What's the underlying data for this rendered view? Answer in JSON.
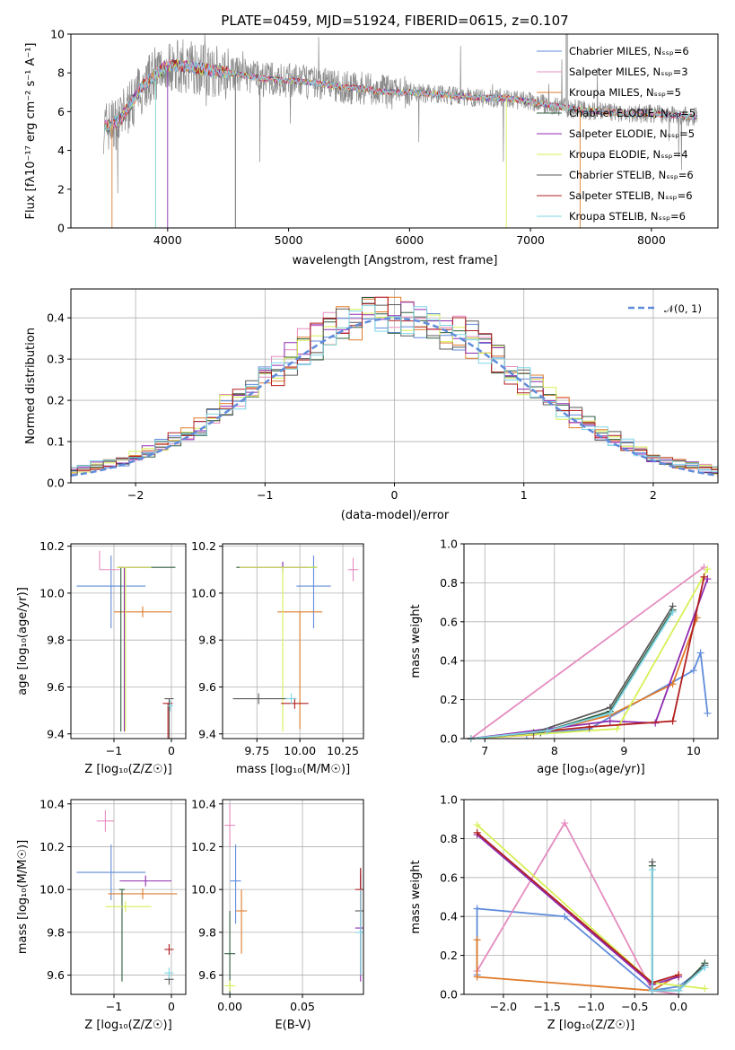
{
  "colors": [
    "#5f8cdb",
    "#e58cc0",
    "#e07c2c",
    "#2e5e3e",
    "#8f2bb0",
    "#d7f056",
    "#5a5a5a",
    "#b21f1f",
    "#7fd6e6"
  ],
  "chart_data": [
    {
      "id": "spectrum",
      "type": "line",
      "title": "PLATE=0459, MJD=51924, FIBERID=0615, z=0.107",
      "xlabel": "wavelength [Angstrom, rest frame]",
      "ylabel": "Flux [fλ10⁻¹⁷ erg cm⁻² s⁻¹ A⁻¹]",
      "xlim": [
        3200,
        8550
      ],
      "ylim": [
        0,
        10
      ],
      "xticks": [
        "4000",
        "5000",
        "6000",
        "7000",
        "8000"
      ],
      "yticks": [
        "0",
        "2",
        "4",
        "6",
        "8",
        "10"
      ],
      "legend_position": "upper-right",
      "continuum_x": [
        3480,
        3600,
        3800,
        4000,
        4200,
        4400,
        4600,
        4800,
        5000,
        5200,
        5400,
        5600,
        5800,
        6000,
        6200,
        6400,
        6600,
        6800,
        7000,
        7200,
        7400,
        7600,
        7800,
        8000,
        8200,
        8400
      ],
      "continuum_y": [
        5.2,
        5.5,
        7.4,
        8.4,
        8.3,
        8.1,
        7.9,
        7.7,
        7.6,
        7.5,
        7.3,
        7.2,
        7.0,
        7.0,
        6.9,
        6.8,
        6.7,
        6.7,
        6.5,
        6.3,
        6.1,
        6.0,
        5.9,
        5.9,
        5.8,
        5.7
      ],
      "series": [
        {
          "name": "Chabrier MILES, Nₛₛₚ=6"
        },
        {
          "name": "Salpeter MILES, Nₛₛₚ=3"
        },
        {
          "name": "Kroupa MILES, Nₛₛₚ=5"
        },
        {
          "name": "Chabrier ELODIE, Nₛₛₚ=5"
        },
        {
          "name": "Salpeter ELODIE, Nₛₛₚ=5"
        },
        {
          "name": "Kroupa ELODIE, Nₛₛₚ=4"
        },
        {
          "name": "Chabrier STELIB, Nₛₛₚ=6"
        },
        {
          "name": "Salpeter STELIB, Nₛₛₚ=6"
        },
        {
          "name": "Kroupa STELIB, Nₛₛₚ=6"
        }
      ]
    },
    {
      "id": "residuals",
      "type": "line",
      "xlabel": "(data-model)/error",
      "ylabel": "Normed distribution",
      "xlim": [
        -2.5,
        2.5
      ],
      "ylim": [
        0,
        0.47
      ],
      "xticks": [
        "−2",
        "−1",
        "0",
        "1",
        "2"
      ],
      "yticks": [
        "0.0",
        "0.1",
        "0.2",
        "0.3",
        "0.4"
      ],
      "grid": true,
      "legend": "𝒩(0, 1)",
      "legend_position": "upper-right",
      "reference_curve": "normal(0,1)",
      "bin_width": 0.1
    },
    {
      "id": "age-vs-Z",
      "type": "scatter",
      "xlabel": "Z [log₁₀(Z/Z☉)]",
      "ylabel": "age  [log₁₀(age/yr)]",
      "xlim": [
        -1.75,
        0.25
      ],
      "ylim": [
        9.38,
        10.21
      ],
      "xticks": [
        "−1",
        "0"
      ],
      "yticks": [
        "9.4",
        "9.6",
        "9.8",
        "10.0",
        "10.2"
      ],
      "grid": true,
      "points": [
        {
          "x": -1.05,
          "xerr": [
            0.6,
            0.6
          ],
          "y": 10.03,
          "yerr": [
            0.18,
            0.13
          ]
        },
        {
          "x": -1.25,
          "xerr": [
            0.0,
            0.35
          ],
          "y": 10.1,
          "yerr": [
            0.0,
            0.08
          ]
        },
        {
          "x": -0.5,
          "xerr": [
            0.5,
            0.5
          ],
          "y": 9.92,
          "yerr": [
            0.0,
            0.0
          ]
        },
        {
          "x": -0.88,
          "xerr": [
            0.05,
            0.95
          ],
          "y": 10.11,
          "yerr": [
            0.7,
            0.0
          ]
        },
        {
          "x": -0.82,
          "xerr": [
            0.1,
            0.45
          ],
          "y": 10.11,
          "yerr": [
            0.7,
            0.0
          ]
        },
        {
          "x": -0.8,
          "xerr": [
            0.15,
            0.45
          ],
          "y": 10.11,
          "yerr": [
            0.7,
            0.0
          ]
        },
        {
          "x": -0.04,
          "xerr": [
            0.08,
            0.08
          ],
          "y": 9.55,
          "yerr": [
            0.55,
            0.0
          ]
        },
        {
          "x": -0.06,
          "xerr": [
            0.09,
            0.08
          ],
          "y": 9.53,
          "yerr": [
            0.5,
            0.0
          ]
        },
        {
          "x": -0.02,
          "xerr": [
            0.05,
            0.05
          ],
          "y": 9.52,
          "yerr": [
            0.0,
            0.0
          ]
        }
      ]
    },
    {
      "id": "age-vs-mass",
      "type": "scatter",
      "xlabel": "mass [log₁₀(M/M☉)]",
      "xlim": [
        9.55,
        10.37
      ],
      "ylim": [
        9.38,
        10.21
      ],
      "xticks": [
        "9.75",
        "10.00",
        "10.25"
      ],
      "yticks": [
        "9.4",
        "9.6",
        "9.8",
        "10.0",
        "10.2"
      ],
      "grid": true,
      "points": [
        {
          "x": 10.08,
          "xerr": [
            0.1,
            0.1
          ],
          "y": 10.03,
          "yerr": [
            0.18,
            0.13
          ]
        },
        {
          "x": 10.31,
          "xerr": [
            0.03,
            0.03
          ],
          "y": 10.1,
          "yerr": [
            0.05,
            0.05
          ]
        },
        {
          "x": 10.0,
          "xerr": [
            0.13,
            0.13
          ],
          "y": 9.92,
          "yerr": [
            0.5,
            0.0
          ]
        },
        {
          "x": 9.9,
          "xerr": [
            0.27,
            0.2
          ],
          "y": 10.11,
          "yerr": [
            0.0,
            0.0
          ]
        },
        {
          "x": 9.9,
          "xerr": [
            0.25,
            0.15
          ],
          "y": 10.11,
          "yerr": [
            0.0,
            0.0
          ]
        },
        {
          "x": 9.9,
          "xerr": [
            0.25,
            0.2
          ],
          "y": 10.11,
          "yerr": [
            0.7,
            0.0
          ]
        },
        {
          "x": 9.76,
          "xerr": [
            0.15,
            0.16
          ],
          "y": 9.55,
          "yerr": [
            0.0,
            0.0
          ]
        },
        {
          "x": 9.97,
          "xerr": [
            0.08,
            0.08
          ],
          "y": 9.53,
          "yerr": [
            0.0,
            0.0
          ]
        },
        {
          "x": 9.95,
          "xerr": [
            0.0,
            0.0
          ],
          "y": 9.55,
          "yerr": [
            0.0,
            0.0
          ]
        }
      ]
    },
    {
      "id": "weight-vs-age",
      "type": "line",
      "xlabel": "age  [log₁₀(age/yr)]",
      "ylabel": "mass weight",
      "xlim": [
        6.7,
        10.35
      ],
      "ylim": [
        0,
        1
      ],
      "xticks": [
        "7",
        "8",
        "9",
        "10"
      ],
      "yticks": [
        "0.0",
        "0.2",
        "0.4",
        "0.6",
        "0.8",
        "1.0"
      ],
      "grid": true,
      "series": [
        {
          "x": [
            6.8,
            7.6,
            8.5,
            10.0,
            10.1,
            10.2
          ],
          "y": [
            0.0,
            0.02,
            0.05,
            0.35,
            0.44,
            0.13
          ]
        },
        {
          "x": [
            6.8,
            10.15
          ],
          "y": [
            0.0,
            0.88
          ]
        },
        {
          "x": [
            6.8,
            7.7,
            8.8,
            9.7,
            10.05
          ],
          "y": [
            0.0,
            0.02,
            0.12,
            0.28,
            0.62
          ]
        },
        {
          "x": [
            6.8,
            7.8,
            8.8,
            9.7
          ],
          "y": [
            0.0,
            0.03,
            0.14,
            0.66
          ]
        },
        {
          "x": [
            6.8,
            8.8,
            9.45,
            10.2
          ],
          "y": [
            0.0,
            0.09,
            0.08,
            0.82
          ]
        },
        {
          "x": [
            6.8,
            8.9,
            10.2
          ],
          "y": [
            0.0,
            0.05,
            0.87
          ]
        },
        {
          "x": [
            6.8,
            7.7,
            8.8,
            9.7
          ],
          "y": [
            0.0,
            0.03,
            0.16,
            0.68
          ]
        },
        {
          "x": [
            6.8,
            8.5,
            9.7,
            10.15
          ],
          "y": [
            0.0,
            0.06,
            0.09,
            0.83
          ]
        },
        {
          "x": [
            6.8,
            7.9,
            8.8,
            9.7
          ],
          "y": [
            0.0,
            0.04,
            0.13,
            0.65
          ]
        }
      ]
    },
    {
      "id": "mass-vs-Z",
      "type": "scatter",
      "xlabel": "Z [log₁₀(Z/Z☉)]",
      "ylabel": "mass [log₁₀(M/M☉)]",
      "xlim": [
        -1.75,
        0.25
      ],
      "ylim": [
        9.51,
        10.42
      ],
      "xticks": [
        "−1",
        "0"
      ],
      "yticks": [
        "9.6",
        "9.8",
        "10.0",
        "10.2",
        "10.4"
      ],
      "grid": true,
      "points": [
        {
          "x": -1.05,
          "xerr": [
            0.6,
            0.6
          ],
          "y": 10.08,
          "yerr": [
            0.13,
            0.13
          ]
        },
        {
          "x": -1.15,
          "xerr": [
            0.15,
            0.15
          ],
          "y": 10.32,
          "yerr": [
            0.05,
            0.05
          ]
        },
        {
          "x": -0.5,
          "xerr": [
            0.6,
            0.6
          ],
          "y": 9.98,
          "yerr": [
            0.0,
            0.0
          ]
        },
        {
          "x": -0.86,
          "xerr": [
            0.05,
            0.05
          ],
          "y": 10.0,
          "yerr": [
            0.43,
            0.0
          ]
        },
        {
          "x": -0.45,
          "xerr": [
            0.45,
            0.45
          ],
          "y": 10.04,
          "yerr": [
            0.0,
            0.0
          ]
        },
        {
          "x": -0.8,
          "xerr": [
            0.35,
            0.45
          ],
          "y": 9.92,
          "yerr": [
            0.0,
            0.0
          ]
        },
        {
          "x": -0.04,
          "xerr": [
            0.08,
            0.08
          ],
          "y": 9.58,
          "yerr": [
            0.0,
            0.0
          ]
        },
        {
          "x": -0.04,
          "xerr": [
            0.08,
            0.08
          ],
          "y": 9.72,
          "yerr": [
            0.0,
            0.0
          ]
        },
        {
          "x": -0.04,
          "xerr": [
            0.08,
            0.08
          ],
          "y": 9.61,
          "yerr": [
            0.0,
            0.0
          ]
        }
      ]
    },
    {
      "id": "mass-vs-EBV",
      "type": "scatter",
      "xlabel": "E(B-V)",
      "xlim": [
        -0.005,
        0.092
      ],
      "ylim": [
        9.51,
        10.42
      ],
      "xticks": [
        "0.00",
        "0.05"
      ],
      "yticks": [
        "9.6",
        "9.8",
        "10.0",
        "10.2",
        "10.4"
      ],
      "grid": true,
      "points": [
        {
          "x": 0.004,
          "y": 10.04,
          "yerr": [
            0.2,
            0.17
          ]
        },
        {
          "x": 0.0,
          "y": 10.3,
          "yerr": [
            0.1,
            0.1
          ]
        },
        {
          "x": 0.008,
          "y": 9.9,
          "yerr": [
            0.2,
            0.1
          ]
        },
        {
          "x": 0.0,
          "y": 9.7,
          "yerr": [
            0.2,
            0.2
          ]
        },
        {
          "x": 0.09,
          "y": 9.82,
          "yerr": [
            0.25,
            0.25
          ]
        },
        {
          "x": 0.0,
          "y": 9.55,
          "yerr": [
            0.0,
            0.0
          ]
        },
        {
          "x": 0.09,
          "y": 9.9,
          "yerr": [
            0.3,
            0.2
          ]
        },
        {
          "x": 0.09,
          "y": 10.0,
          "yerr": [
            0.1,
            0.1
          ]
        },
        {
          "x": 0.09,
          "y": 9.8,
          "yerr": [
            0.2,
            0.2
          ]
        }
      ]
    },
    {
      "id": "weight-vs-Z",
      "type": "line",
      "xlabel": "Z [log₁₀(Z/Z☉)]",
      "ylabel": "mass weight",
      "xlim": [
        -2.45,
        0.45
      ],
      "ylim": [
        0,
        1
      ],
      "xticks": [
        "−2.0",
        "−1.5",
        "−1.0",
        "−0.5",
        "0.0"
      ],
      "yticks": [
        "0.0",
        "0.2",
        "0.4",
        "0.6",
        "0.8",
        "1.0"
      ],
      "grid": true,
      "series": [
        {
          "x": [
            0.3,
            0.0,
            -0.3,
            -1.3,
            -2.3,
            -2.3
          ],
          "y": [
            0.14,
            0.04,
            0.02,
            0.4,
            0.44,
            0.1
          ]
        },
        {
          "x": [
            0.0,
            -0.3,
            -1.3,
            -2.3
          ],
          "y": [
            0.0,
            0.02,
            0.88,
            0.12
          ]
        },
        {
          "x": [
            0.0,
            -0.3,
            -2.3,
            -2.3
          ],
          "y": [
            0.1,
            0.02,
            0.09,
            0.28
          ]
        },
        {
          "x": [
            0.3,
            0.0,
            -0.3,
            -0.3
          ],
          "y": [
            0.16,
            0.02,
            0.02,
            0.66
          ]
        },
        {
          "x": [
            0.0,
            -0.3,
            -2.3
          ],
          "y": [
            0.09,
            0.05,
            0.82
          ]
        },
        {
          "x": [
            0.3,
            -0.3,
            -2.3
          ],
          "y": [
            0.03,
            0.06,
            0.87
          ]
        },
        {
          "x": [
            0.3,
            0.0,
            -0.3,
            -0.3
          ],
          "y": [
            0.15,
            0.02,
            0.02,
            0.68
          ]
        },
        {
          "x": [
            0.0,
            -0.3,
            -2.3
          ],
          "y": [
            0.1,
            0.06,
            0.83
          ]
        },
        {
          "x": [
            0.3,
            0.0,
            -0.3,
            -0.3
          ],
          "y": [
            0.14,
            0.02,
            0.02,
            0.64
          ]
        }
      ]
    }
  ]
}
